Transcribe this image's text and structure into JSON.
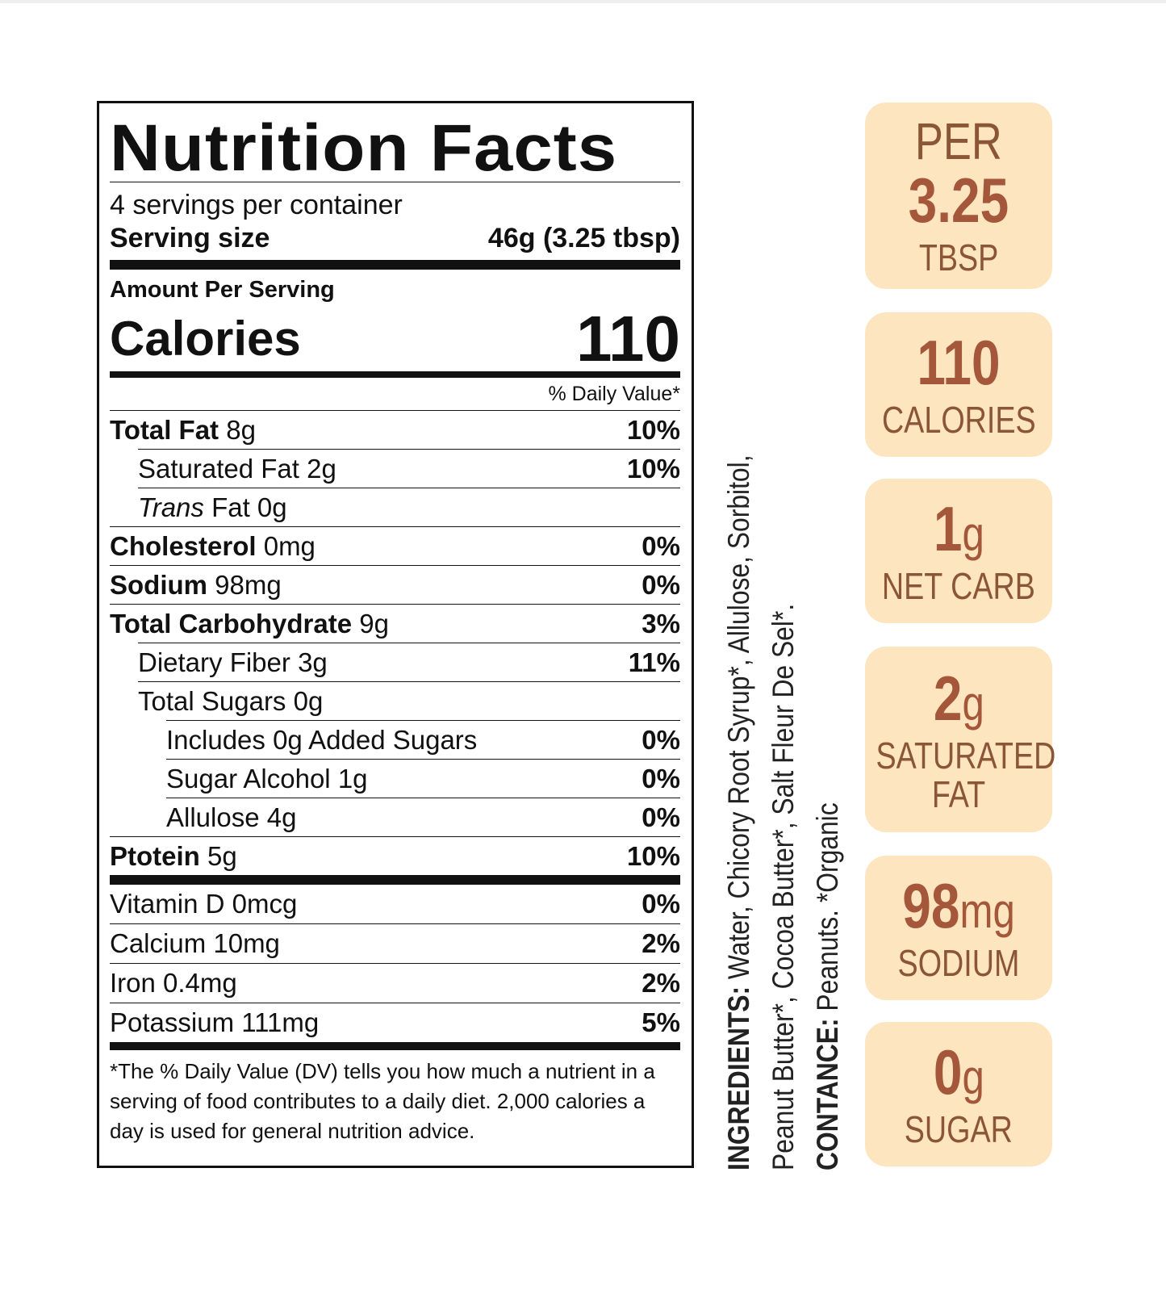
{
  "label": {
    "title": "Nutrition Facts",
    "servings_per_container": "4 servings per container",
    "serving_size_label": "Serving size",
    "serving_size_value": "46g (3.25 tbsp)",
    "amount_per_serving": "Amount Per Serving",
    "calories_label": "Calories",
    "calories_value": "110",
    "daily_value_header": "% Daily Value*",
    "nutrients": [
      {
        "name": "Total Fat",
        "amount": "8g",
        "dv": "10%"
      },
      {
        "name": "Saturated Fat",
        "amount": "2g",
        "dv": "10%"
      },
      {
        "name": "Trans",
        "amount": "Fat 0g",
        "dv": ""
      },
      {
        "name": "Cholesterol",
        "amount": "0mg",
        "dv": "0%"
      },
      {
        "name": "Sodium",
        "amount": "98mg",
        "dv": "0%"
      },
      {
        "name": "Total Carbohydrate",
        "amount": "9g",
        "dv": "3%"
      },
      {
        "name": "Dietary Fiber",
        "amount": "3g",
        "dv": "11%"
      },
      {
        "name": "Total Sugars",
        "amount": "0g",
        "dv": ""
      },
      {
        "name": "Includes 0g Added Sugars",
        "amount": "",
        "dv": "0%"
      },
      {
        "name": "Sugar Alcohol",
        "amount": "1g",
        "dv": "0%"
      },
      {
        "name": "Allulose",
        "amount": "4g",
        "dv": "0%"
      },
      {
        "name": "Ptotein",
        "amount": "5g",
        "dv": "10%"
      }
    ],
    "vitamins": [
      {
        "name": "Vitamin D 0mcg",
        "dv": "0%"
      },
      {
        "name": "Calcium 10mg",
        "dv": "2%"
      },
      {
        "name": "Iron 0.4mg",
        "dv": "2%"
      },
      {
        "name": "Potassium 111mg",
        "dv": "5%"
      }
    ],
    "footnote": "*The % Daily Value (DV) tells you how much a nutrient in a serving of food contributes to a daily diet. 2,000 calories a day is used for general nutrition advice."
  },
  "ingredients": {
    "heading": "INGREDIENTS:",
    "line1": " Water, Chicory Root Syrup*, Allulose, Sorbitol,",
    "line2": "Peanut Butter*, Cocoa Butter*, Salt Fleur De Sel*.",
    "contains_heading": "CONTANCE:",
    "contains_text": " Peanuts. *Organic"
  },
  "badges": [
    {
      "top": "PER",
      "big": "3.25",
      "unit": "",
      "bottom": "TBSP"
    },
    {
      "top": "",
      "big": "110",
      "unit": "",
      "bottom": "CALORIES"
    },
    {
      "top": "",
      "big": "1",
      "unit": "g",
      "bottom": "NET CARB"
    },
    {
      "top": "",
      "big": "2",
      "unit": "g",
      "bottom": "SATURATED FAT"
    },
    {
      "top": "",
      "big": "98",
      "unit": "mg",
      "bottom": "SODIUM"
    },
    {
      "top": "",
      "big": "0",
      "unit": "g",
      "bottom": "SUGAR"
    }
  ],
  "colors": {
    "badge_bg": "#fde6bf",
    "badge_text": "#a4573a"
  }
}
